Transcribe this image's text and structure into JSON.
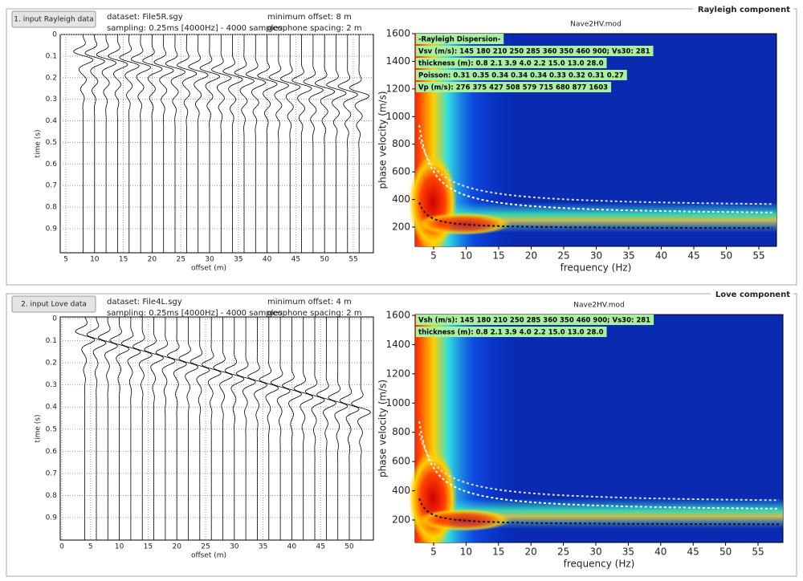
{
  "rayleigh": {
    "section_title": "Rayleigh component",
    "button": "1. input Rayleigh data",
    "dataset": "dataset: File5R.sgy",
    "sampling": "sampling: 0.25ms [4000Hz] - 4000 samples",
    "min_offset": "minimum offset: 8 m",
    "geophone_spacing": "geophone spacing: 2 m",
    "seismogram": {
      "ylabel": "time (s)",
      "xlabel": "offset (m)",
      "yticks": [
        0,
        0.1,
        0.2,
        0.3,
        0.4,
        0.5,
        0.6,
        0.7,
        0.8,
        0.9
      ],
      "xticks": [
        5,
        10,
        15,
        20,
        25,
        30,
        35,
        40,
        45,
        50,
        55
      ]
    },
    "dispersion": {
      "title": "Nave2HV.mod",
      "ylabel": "phase velocity (m/s)",
      "xlabel": "frequency (Hz)",
      "yticks": [
        200,
        400,
        600,
        800,
        1000,
        1200,
        1400,
        1600
      ],
      "xticks": [
        5,
        10,
        15,
        20,
        25,
        30,
        35,
        40,
        45,
        50,
        55
      ],
      "info": [
        "-Rayleigh Dispersion-",
        "Vsv (m/s): 145  180  210  250  285  360  350  460  900; Vs30: 281",
        "thickness (m): 0.8   2.1   3.9   4.0   2.2  15.0  13.0  28.0",
        "Poisson: 0.31  0.35  0.34  0.34  0.34  0.33  0.32  0.31  0.27",
        "Vp (m/s): 276  375  427  508  579  715  680  877 1603"
      ]
    }
  },
  "love": {
    "section_title": "Love component",
    "button": "2. input Love data",
    "dataset": "dataset: File4L.sgy",
    "sampling": "sampling: 0.25ms [4000Hz] - 4000 samples",
    "min_offset": "minimum offset: 4 m",
    "geophone_spacing": "geophone spacing: 2 m",
    "seismogram": {
      "ylabel": "time (s)",
      "xlabel": "offset (m)",
      "yticks": [
        0,
        0.1,
        0.2,
        0.3,
        0.4,
        0.5,
        0.6,
        0.7,
        0.8,
        0.9
      ],
      "xticks": [
        0,
        5,
        10,
        15,
        20,
        25,
        30,
        35,
        40,
        45,
        50
      ]
    },
    "dispersion": {
      "title": "Nave2HV.mod",
      "ylabel": "phase velocity (m/s)",
      "xlabel": "frequency (Hz)",
      "yticks": [
        200,
        400,
        600,
        800,
        1000,
        1200,
        1400,
        1600
      ],
      "xticks": [
        5,
        10,
        15,
        20,
        25,
        30,
        35,
        40,
        45,
        50,
        55
      ],
      "info": [
        "Vsh (m/s): 145  180  210  250  285  360  350  460  900; Vs30: 281",
        "thickness (m): 0.8   2.1   3.9   4.0   2.2  15.0  13.0  28.0"
      ]
    }
  }
}
